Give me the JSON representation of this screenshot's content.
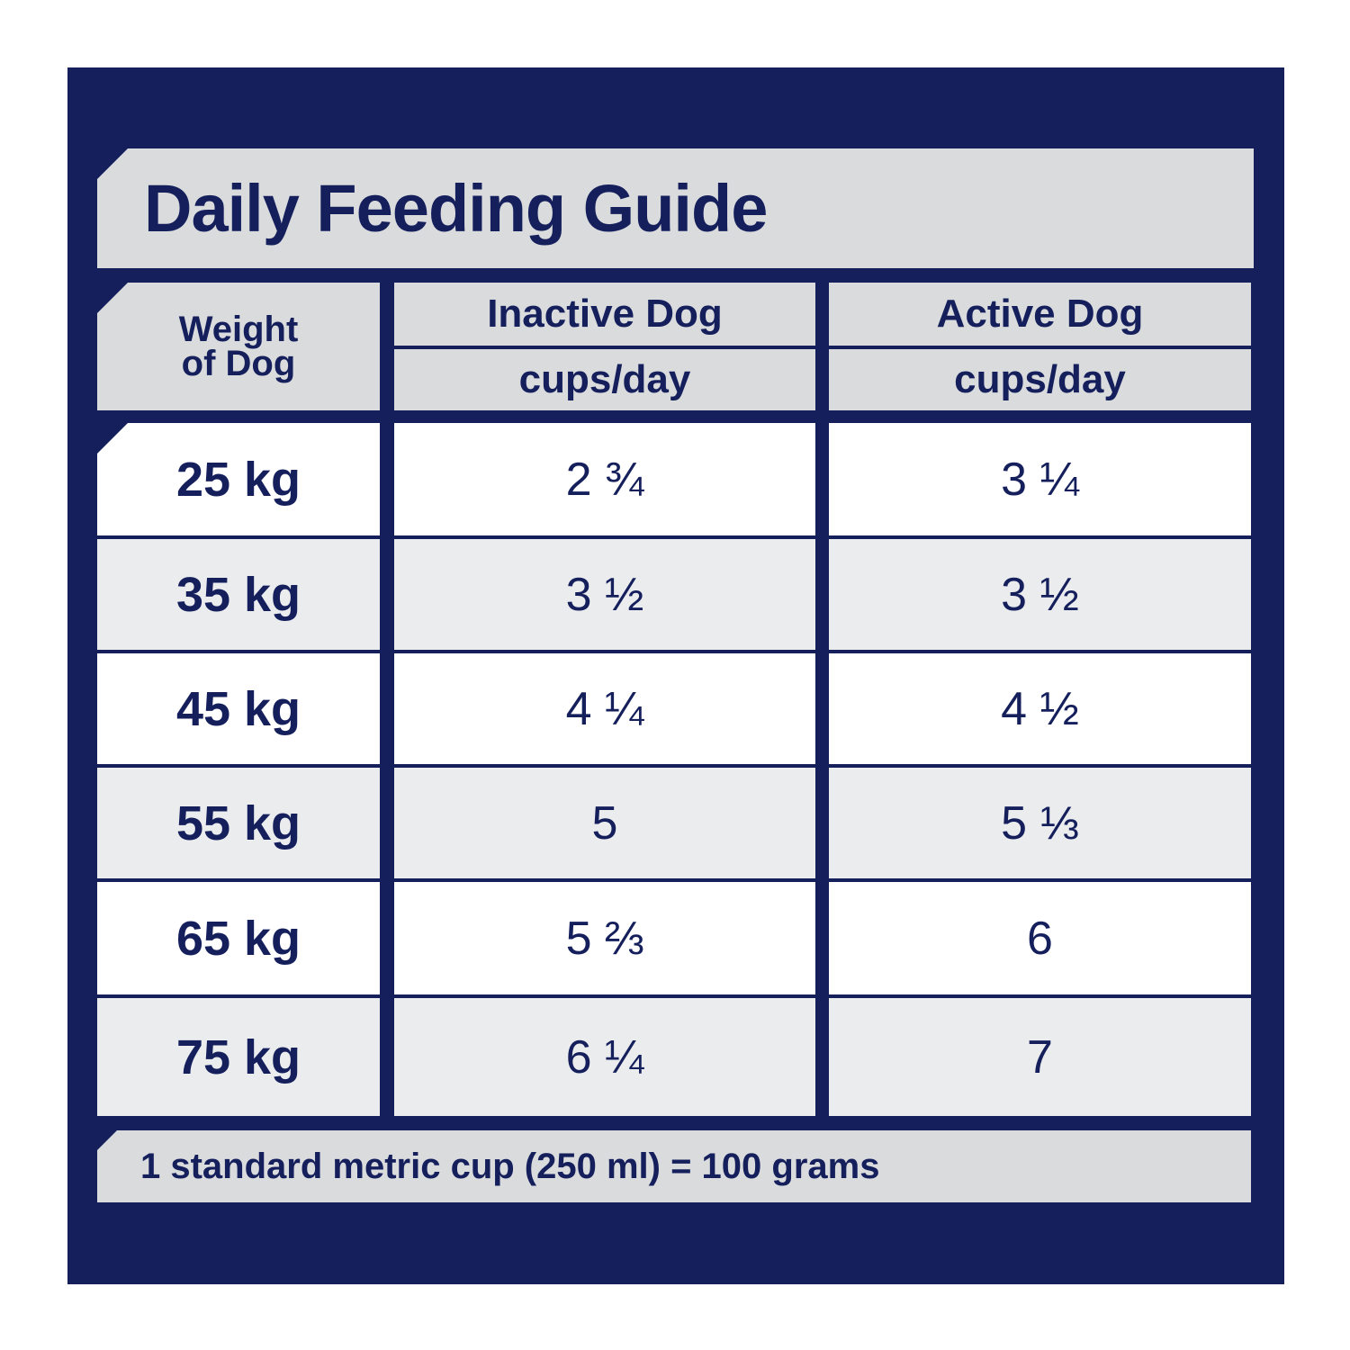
{
  "title": "Daily Feeding Guide",
  "headers": {
    "weight_line1": "Weight",
    "weight_line2": "of Dog",
    "inactive": "Inactive Dog",
    "active": "Active Dog",
    "inactive_unit": "cups/day",
    "active_unit": "cups/day"
  },
  "rows": [
    {
      "weight": "25 kg",
      "inactive": "2 ¾",
      "active": "3 ¼"
    },
    {
      "weight": "35 kg",
      "inactive": "3 ½",
      "active": "3 ½"
    },
    {
      "weight": "45 kg",
      "inactive": "4 ¼",
      "active": "4 ½"
    },
    {
      "weight": "55 kg",
      "inactive": "5",
      "active": "5 ⅓"
    },
    {
      "weight": "65 kg",
      "inactive": "5 ⅔",
      "active": "6"
    },
    {
      "weight": "75 kg",
      "inactive": "6 ¼",
      "active": "7"
    }
  ],
  "footer": "1 standard metric cup (250 ml) = 100 grams",
  "colors": {
    "navy": "#141f5c",
    "header_grey": "#dadbdd",
    "row_grey": "#ebecee",
    "row_white": "#ffffff"
  }
}
